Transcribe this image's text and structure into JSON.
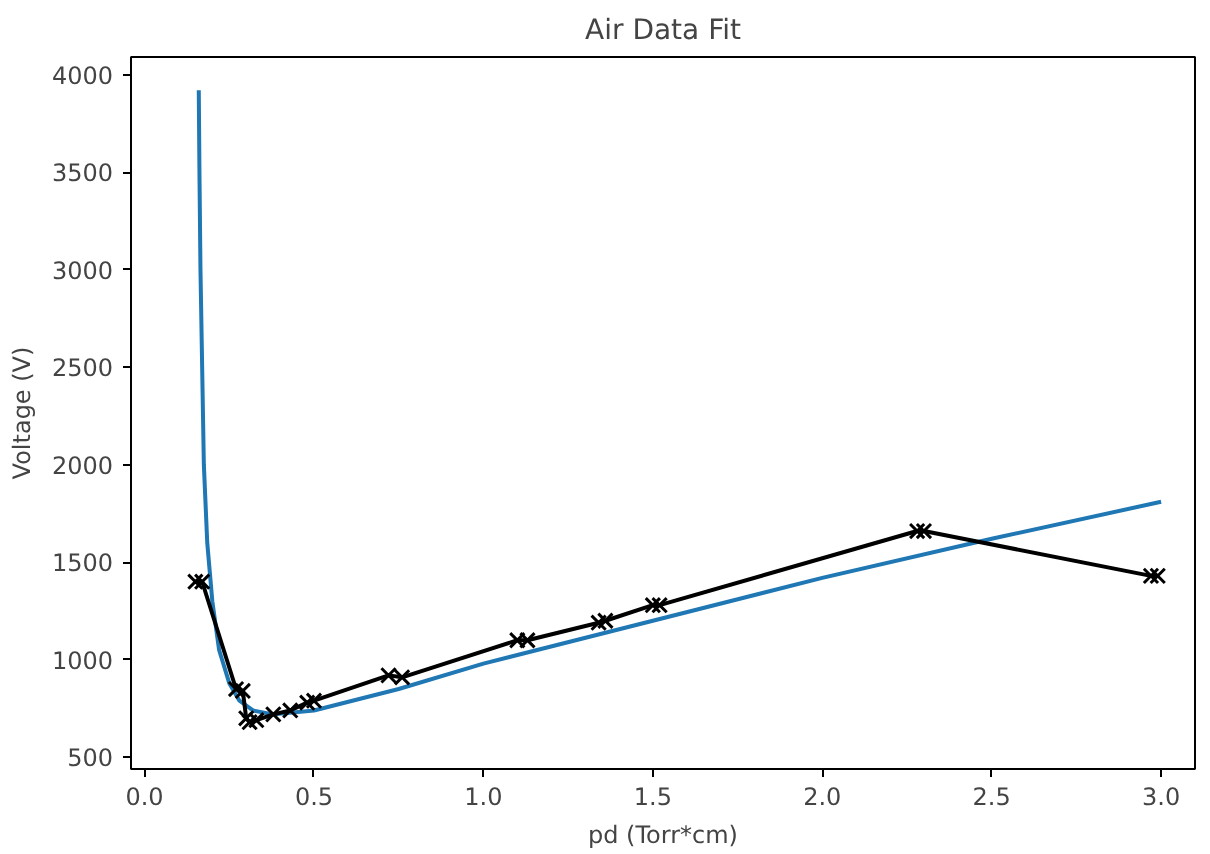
{
  "chart_data": {
    "type": "line",
    "title": "Air Data Fit",
    "xlabel": "pd (Torr*cm)",
    "ylabel": "Voltage (V)",
    "xlim": [
      -0.04,
      3.1
    ],
    "ylim": [
      440,
      4090
    ],
    "xticks": [
      {
        "value": 0,
        "label": "0.0"
      },
      {
        "value": 0.5,
        "label": "0.5"
      },
      {
        "value": 1,
        "label": "1.0"
      },
      {
        "value": 1.5,
        "label": "1.5"
      },
      {
        "value": 2,
        "label": "2.0"
      },
      {
        "value": 2.5,
        "label": "2.5"
      },
      {
        "value": 3,
        "label": "3.0"
      }
    ],
    "yticks": [
      500,
      1000,
      1500,
      2000,
      2500,
      3000,
      3500,
      4000
    ],
    "grid": false,
    "series": [
      {
        "color": "#1f77b4",
        "marker": "none",
        "x": [
          0.16,
          0.162,
          0.165,
          0.17,
          0.175,
          0.185,
          0.2,
          0.22,
          0.25,
          0.28,
          0.32,
          0.38,
          0.5,
          0.75,
          1.0,
          1.5,
          2.0,
          2.5,
          3.0
        ],
        "values": [
          3920,
          3500,
          3000,
          2500,
          2000,
          1600,
          1300,
          1050,
          880,
          790,
          740,
          720,
          740,
          850,
          980,
          1200,
          1420,
          1620,
          1810
        ]
      },
      {
        "color": "#000000",
        "marker": "cross",
        "x": [
          0.15,
          0.17,
          0.27,
          0.29,
          0.3,
          0.31,
          0.33,
          0.38,
          0.43,
          0.48,
          0.5,
          0.72,
          0.76,
          1.1,
          1.13,
          1.34,
          1.36,
          1.5,
          1.52,
          2.28,
          2.3,
          2.97,
          2.99
        ],
        "values": [
          1400,
          1400,
          850,
          840,
          700,
          680,
          690,
          720,
          740,
          780,
          790,
          920,
          910,
          1100,
          1100,
          1190,
          1200,
          1280,
          1280,
          1660,
          1660,
          1430,
          1430
        ]
      }
    ]
  }
}
